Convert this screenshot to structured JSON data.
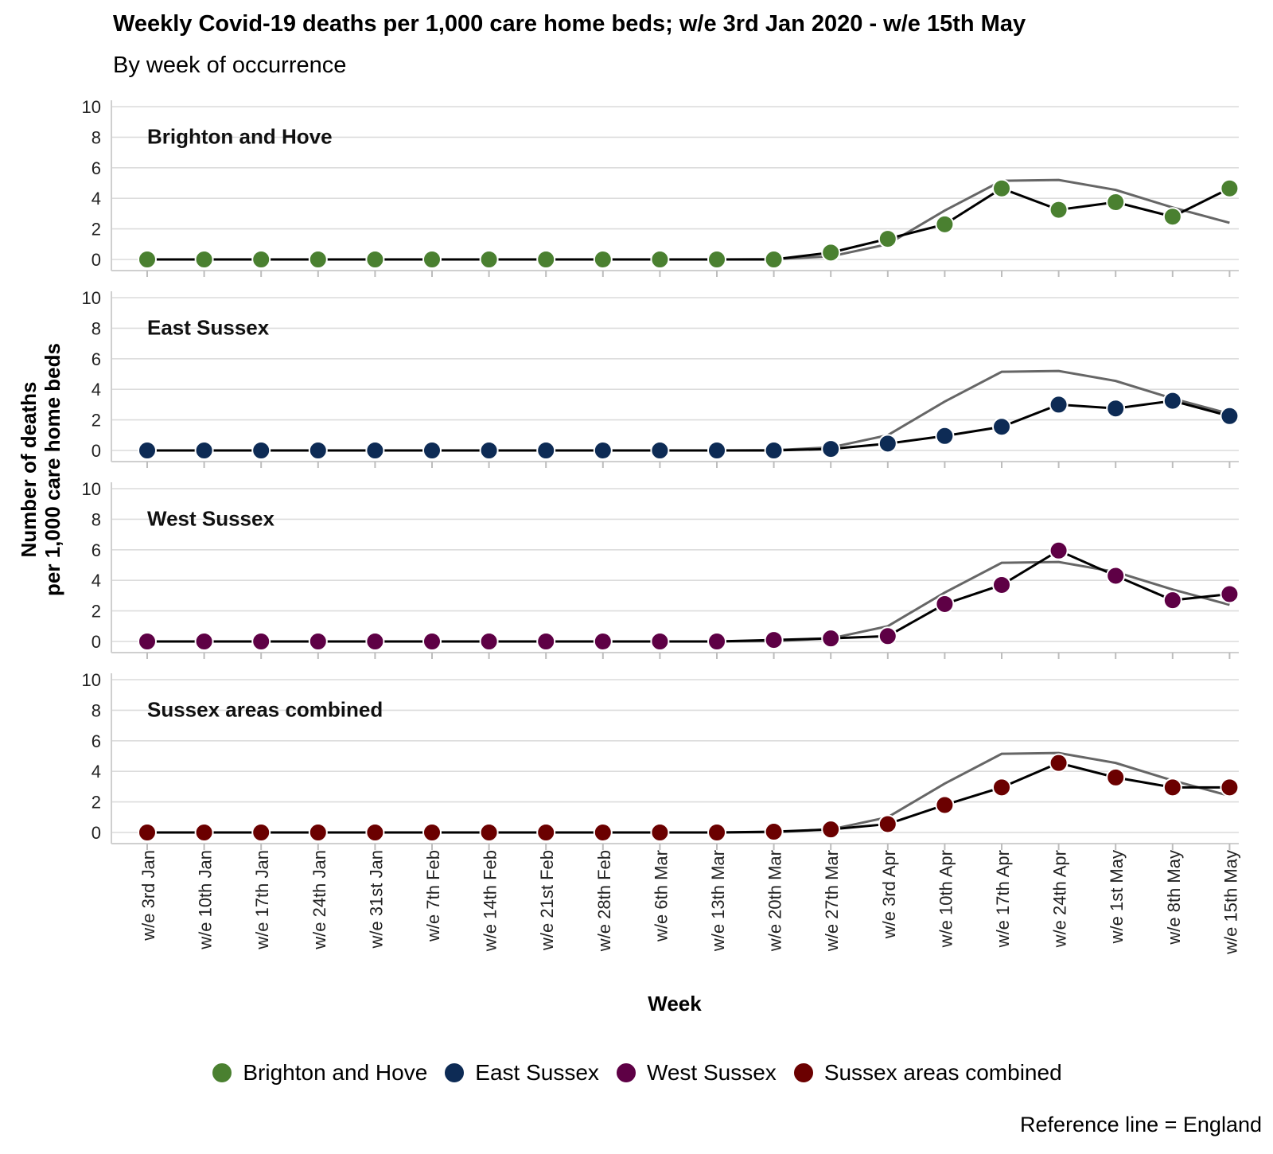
{
  "title": "Weekly Covid-19 deaths per 1,000 care home beds; w/e 3rd Jan 2020 - w/e 15th May",
  "subtitle": "By week of occurrence",
  "caption": "Reference line = England",
  "chart_data": {
    "type": "line",
    "xlabel": "Week",
    "ylabel": [
      "Number of deaths",
      "per 1,000 care home beds"
    ],
    "ylim": [
      0,
      10
    ],
    "yticks": [
      0,
      2,
      4,
      6,
      8,
      10
    ],
    "grid": true,
    "legend_position": "bottom",
    "categories": [
      "w/e 3rd Jan",
      "w/e 10th Jan",
      "w/e 17th Jan",
      "w/e 24th Jan",
      "w/e 31st Jan",
      "w/e 7th Feb",
      "w/e 14th Feb",
      "w/e 21st Feb",
      "w/e 28th Feb",
      "w/e 6th Mar",
      "w/e 13th Mar",
      "w/e 20th Mar",
      "w/e 27th Mar",
      "w/e 3rd Apr",
      "w/e 10th Apr",
      "w/e 17th Apr",
      "w/e 24th Apr",
      "w/e 1st May",
      "w/e 8th May",
      "w/e 15th May"
    ],
    "reference_line": {
      "label": "England",
      "color": "#666666",
      "values": [
        0,
        0,
        0,
        0,
        0,
        0,
        0,
        0,
        0,
        0,
        0,
        0.02,
        0.2,
        1.0,
        3.2,
        5.15,
        5.2,
        4.55,
        3.4,
        2.4
      ]
    },
    "series": [
      {
        "name": "Brighton and Hove",
        "color": "#4a8030",
        "values": [
          0,
          0,
          0,
          0,
          0,
          0,
          0,
          0,
          0,
          0,
          0,
          0,
          0.45,
          1.35,
          2.3,
          4.65,
          3.25,
          3.75,
          2.8,
          4.65
        ]
      },
      {
        "name": "East Sussex",
        "color": "#0d2b55",
        "values": [
          0,
          0,
          0,
          0,
          0,
          0,
          0,
          0,
          0,
          0,
          0,
          0,
          0.1,
          0.45,
          0.95,
          1.55,
          3.0,
          2.75,
          3.25,
          2.25
        ]
      },
      {
        "name": "West Sussex",
        "color": "#5e0045",
        "values": [
          0,
          0,
          0,
          0,
          0,
          0,
          0,
          0,
          0,
          0,
          0,
          0.1,
          0.2,
          0.35,
          2.45,
          3.7,
          5.95,
          4.3,
          2.7,
          3.1
        ]
      },
      {
        "name": "Sussex areas combined",
        "color": "#6b0000",
        "values": [
          0,
          0,
          0,
          0,
          0,
          0,
          0,
          0,
          0,
          0,
          0,
          0.05,
          0.2,
          0.55,
          1.8,
          2.95,
          4.55,
          3.6,
          2.95,
          2.95
        ]
      }
    ]
  }
}
